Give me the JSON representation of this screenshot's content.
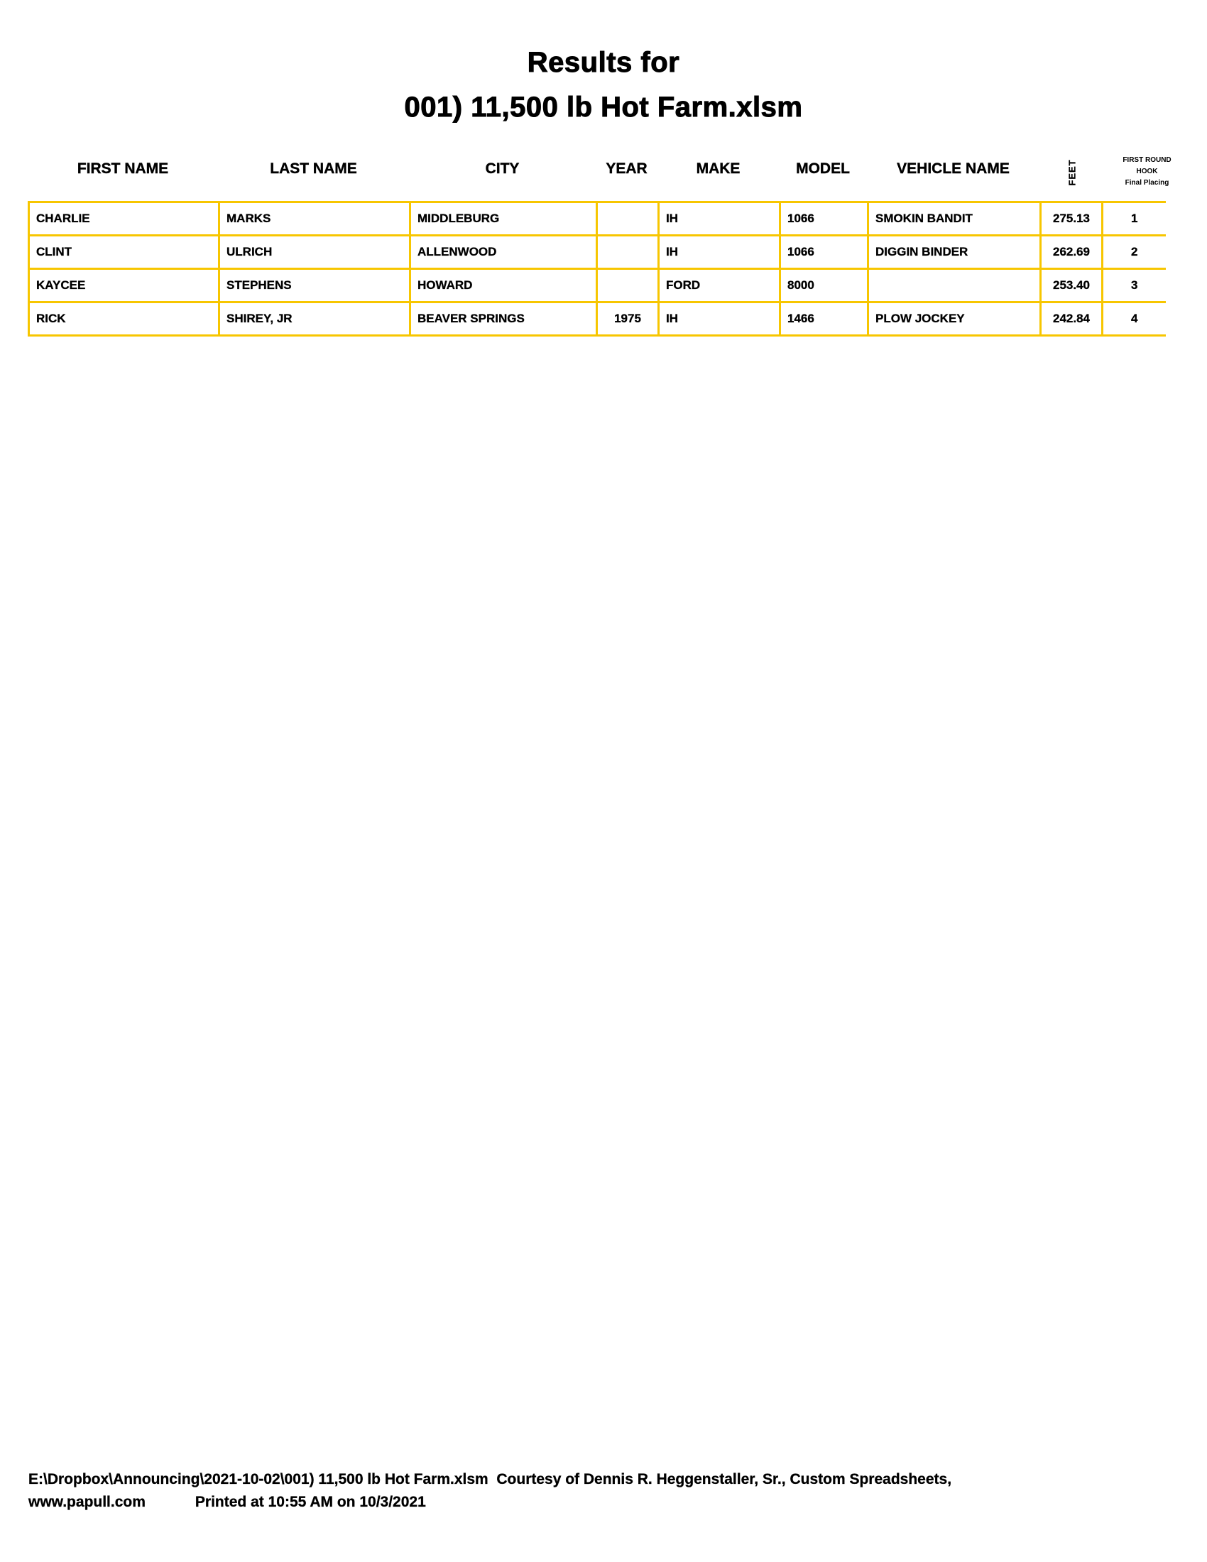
{
  "title_line1": "Results for",
  "title_line2": "001) 11,500 lb Hot Farm.xlsm",
  "headers": {
    "first_name": "FIRST NAME",
    "last_name": "LAST NAME",
    "city": "CITY",
    "year": "YEAR",
    "make": "MAKE",
    "model": "MODEL",
    "vehicle_name": "VEHICLE NAME",
    "feet": "FEET",
    "placing_1": "FIRST ROUND",
    "placing_2": "HOOK",
    "placing_3": "Final Placing"
  },
  "rows": [
    {
      "first": "CHARLIE",
      "last": "MARKS",
      "city": "MIDDLEBURG",
      "year": "",
      "make": "IH",
      "model": "1066",
      "vehicle": "SMOKIN BANDIT",
      "feet": "275.13",
      "place": "1"
    },
    {
      "first": "CLINT",
      "last": "ULRICH",
      "city": "ALLENWOOD",
      "year": "",
      "make": "IH",
      "model": "1066",
      "vehicle": "DIGGIN BINDER",
      "feet": "262.69",
      "place": "2"
    },
    {
      "first": "KAYCEE",
      "last": "STEPHENS",
      "city": "HOWARD",
      "year": "",
      "make": "FORD",
      "model": "8000",
      "vehicle": "",
      "feet": "253.40",
      "place": "3"
    },
    {
      "first": "RICK",
      "last": "SHIREY, JR",
      "city": "BEAVER SPRINGS",
      "year": "1975",
      "make": "IH",
      "model": "1466",
      "vehicle": "PLOW JOCKEY",
      "feet": "242.84",
      "place": "4"
    }
  ],
  "footer_line1": "E:\\Dropbox\\Announcing\\2021-10-02\\001) 11,500 lb Hot Farm.xlsm  Courtesy of Dennis R. Heggenstaller, Sr., Custom Spreadsheets,",
  "footer_line2_site": "www.papull.com",
  "footer_line2_printed": "Printed at 10:55 AM on 10/3/2021",
  "colors": {
    "grid": "#f7c600"
  }
}
